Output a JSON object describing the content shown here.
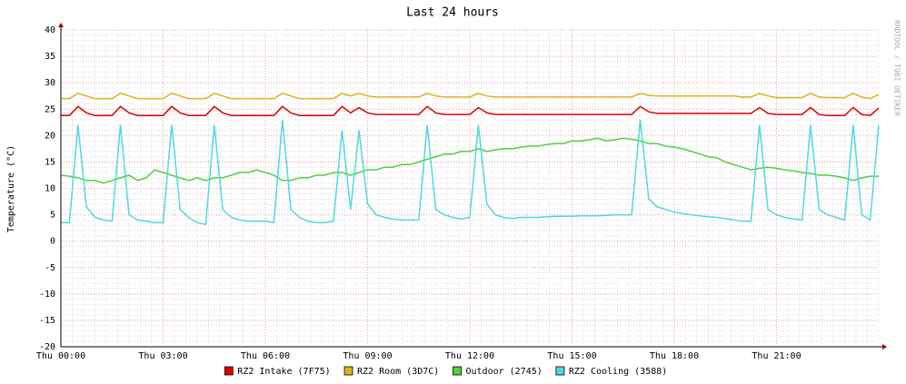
{
  "chart_data": {
    "type": "line",
    "title": "Last 24 hours",
    "y_label": "Temperature (°C)",
    "side_label": "RRDTOOL / TOBI OETIKER",
    "x": [
      0,
      0.25,
      0.5,
      0.75,
      1,
      1.25,
      1.5,
      1.75,
      2,
      2.25,
      2.5,
      2.75,
      3,
      3.25,
      3.5,
      3.75,
      4,
      4.25,
      4.5,
      4.75,
      5,
      5.25,
      5.5,
      5.75,
      6,
      6.25,
      6.5,
      6.75,
      7,
      7.25,
      7.5,
      7.75,
      8,
      8.25,
      8.5,
      8.75,
      9,
      9.25,
      9.5,
      9.75,
      10,
      10.25,
      10.5,
      10.75,
      11,
      11.25,
      11.5,
      11.75,
      12,
      12.25,
      12.5,
      12.75,
      13,
      13.25,
      13.5,
      13.75,
      14,
      14.25,
      14.5,
      14.75,
      15,
      15.25,
      15.5,
      15.75,
      16,
      16.25,
      16.5,
      16.75,
      17,
      17.25,
      17.5,
      17.75,
      18,
      18.25,
      18.5,
      18.75,
      19,
      19.25,
      19.5,
      19.75,
      20,
      20.25,
      20.5,
      20.75,
      21,
      21.25,
      21.5,
      21.75,
      22,
      22.25,
      22.5,
      22.75,
      23,
      23.25,
      23.5,
      23.75,
      24
    ],
    "xlim": [
      0,
      24
    ],
    "xticks": [
      {
        "value": 0,
        "label": "Thu 00:00"
      },
      {
        "value": 3,
        "label": "Thu 03:00"
      },
      {
        "value": 6,
        "label": "Thu 06:00"
      },
      {
        "value": 9,
        "label": "Thu 09:00"
      },
      {
        "value": 12,
        "label": "Thu 12:00"
      },
      {
        "value": 15,
        "label": "Thu 15:00"
      },
      {
        "value": 18,
        "label": "Thu 18:00"
      },
      {
        "value": 21,
        "label": "Thu 21:00"
      }
    ],
    "ylim": [
      -20,
      40
    ],
    "yticks": [
      -20,
      -15,
      -10,
      -5,
      0,
      5,
      10,
      15,
      20,
      25,
      30,
      35,
      40
    ],
    "grid": true,
    "series": [
      {
        "name": "RZ2 Intake (7F75)",
        "color": "#e00000",
        "values": [
          23.8,
          23.8,
          25.5,
          24.3,
          23.8,
          23.8,
          23.8,
          25.5,
          24.3,
          23.8,
          23.8,
          23.8,
          23.8,
          25.5,
          24.3,
          23.8,
          23.8,
          23.8,
          25.5,
          24.3,
          23.8,
          23.8,
          23.8,
          23.8,
          23.8,
          23.8,
          25.5,
          24.3,
          23.8,
          23.8,
          23.8,
          23.8,
          23.8,
          25.5,
          24.3,
          25.3,
          24.3,
          24,
          24,
          24,
          24,
          24,
          24,
          25.5,
          24.3,
          24,
          24,
          24,
          24,
          25.3,
          24.3,
          24,
          24,
          24,
          24,
          24,
          24,
          24,
          24,
          24,
          24,
          24,
          24,
          24,
          24,
          24,
          24,
          24,
          25.5,
          24.5,
          24.2,
          24.2,
          24.2,
          24.2,
          24.2,
          24.2,
          24.2,
          24.2,
          24.2,
          24.2,
          24.2,
          24.2,
          25.3,
          24.2,
          24,
          24,
          24,
          24,
          25.3,
          24,
          23.8,
          23.8,
          23.8,
          25.3,
          24,
          23.8,
          25.2
        ]
      },
      {
        "name": "RZ2 Room (3D7C)",
        "color": "#e0b020",
        "values": [
          27,
          27,
          28,
          27.5,
          27,
          27,
          27,
          28,
          27.5,
          27,
          27,
          27,
          27,
          28,
          27.5,
          27,
          27,
          27,
          28,
          27.5,
          27,
          27,
          27,
          27,
          27,
          27,
          28,
          27.5,
          27,
          27,
          27,
          27,
          27,
          28,
          27.5,
          28,
          27.5,
          27.3,
          27.3,
          27.3,
          27.3,
          27.3,
          27.3,
          28,
          27.5,
          27.3,
          27.3,
          27.3,
          27.3,
          28,
          27.5,
          27.3,
          27.3,
          27.3,
          27.3,
          27.3,
          27.3,
          27.3,
          27.3,
          27.3,
          27.3,
          27.3,
          27.3,
          27.3,
          27.3,
          27.3,
          27.3,
          27.3,
          28,
          27.6,
          27.5,
          27.5,
          27.5,
          27.5,
          27.5,
          27.5,
          27.5,
          27.5,
          27.5,
          27.5,
          27.3,
          27.3,
          28,
          27.5,
          27.2,
          27.2,
          27.2,
          27.2,
          28,
          27.3,
          27.2,
          27.2,
          27.2,
          28,
          27.3,
          27,
          27.8
        ]
      },
      {
        "name": "Outdoor (2745)",
        "color": "#50d040",
        "values": [
          12.5,
          12.3,
          12,
          11.5,
          11.5,
          11,
          11.5,
          12,
          12.5,
          11.5,
          12,
          13.5,
          13,
          12.5,
          12,
          11.5,
          12,
          11.5,
          12,
          12,
          12.5,
          13,
          13,
          13.5,
          13,
          12.5,
          11.5,
          11.5,
          12,
          12,
          12.5,
          12.5,
          13,
          13,
          12.5,
          13,
          13.5,
          13.5,
          14,
          14,
          14.5,
          14.5,
          15,
          15.5,
          16,
          16.5,
          16.5,
          17,
          17,
          17.5,
          17,
          17.3,
          17.5,
          17.5,
          17.8,
          18,
          18,
          18.3,
          18.5,
          18.5,
          19,
          19,
          19.2,
          19.5,
          19,
          19.2,
          19.5,
          19.3,
          19,
          18.5,
          18.5,
          18,
          17.8,
          17.5,
          17,
          16.5,
          16,
          15.8,
          15,
          14.5,
          14,
          13.5,
          13.8,
          14,
          13.8,
          13.5,
          13.3,
          13,
          12.8,
          12.5,
          12.5,
          12.3,
          12,
          11.5,
          12,
          12.3,
          12.3
        ]
      },
      {
        "name": "RZ2 Cooling (3588)",
        "color": "#50d8e0",
        "values": [
          3.5,
          3.5,
          22,
          6.5,
          4.5,
          4,
          3.8,
          22,
          5,
          4,
          3.8,
          3.5,
          3.5,
          22,
          6,
          4.5,
          3.5,
          3.2,
          22,
          6,
          4.5,
          4,
          3.8,
          3.8,
          3.8,
          3.5,
          23,
          6,
          4.5,
          3.8,
          3.5,
          3.5,
          3.8,
          21,
          6,
          21,
          7,
          5,
          4.5,
          4.2,
          4,
          4,
          4,
          22,
          6,
          5,
          4.5,
          4.2,
          4.5,
          22,
          7,
          5,
          4.5,
          4.3,
          4.5,
          4.5,
          4.5,
          4.6,
          4.7,
          4.7,
          4.7,
          4.8,
          4.8,
          4.8,
          4.9,
          5,
          5,
          5,
          23,
          8,
          6.5,
          6,
          5.5,
          5.2,
          5,
          4.8,
          4.6,
          4.5,
          4.3,
          4,
          3.8,
          3.8,
          22,
          6,
          5,
          4.5,
          4.2,
          4,
          22,
          6,
          5,
          4.5,
          4,
          22,
          5,
          4,
          22
        ]
      }
    ]
  }
}
